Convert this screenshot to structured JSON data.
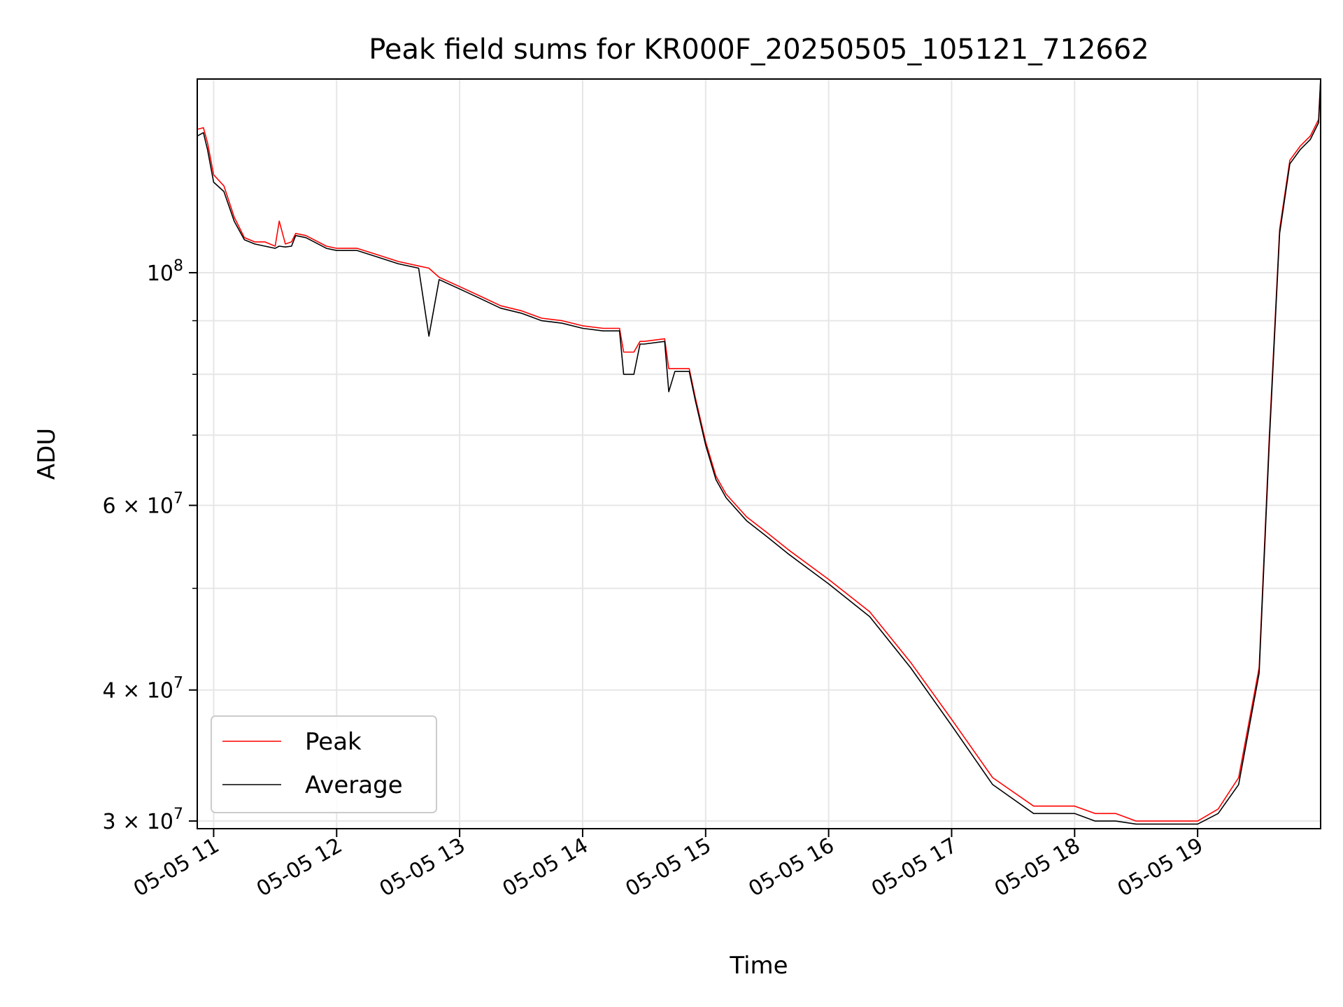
{
  "chart_data": {
    "type": "line",
    "title": "Peak field sums for KR000F_20250505_105121_712662",
    "xlabel": "Time",
    "ylabel": "ADU",
    "yscale": "log",
    "grid": true,
    "legend_position": "lower-left",
    "x_axis_format": "MM-DD HH",
    "xlim": [
      "2025-05-05 10:52",
      "2025-05-05 20:00"
    ],
    "ylim": [
      29500000,
      153000000
    ],
    "x_ticks": [
      "05-05 11",
      "05-05 12",
      "05-05 13",
      "05-05 14",
      "05-05 15",
      "05-05 16",
      "05-05 17",
      "05-05 18",
      "05-05 19"
    ],
    "y_ticks": [
      {
        "value": 100000000,
        "base": "10",
        "exp": "8",
        "mantissa": ""
      },
      {
        "value": 60000000,
        "base": "10",
        "exp": "7",
        "mantissa": "6"
      },
      {
        "value": 40000000,
        "base": "10",
        "exp": "7",
        "mantissa": "4"
      },
      {
        "value": 30000000,
        "base": "10",
        "exp": "7",
        "mantissa": "3"
      }
    ],
    "y_minor_ticks": [
      50000000,
      70000000,
      80000000,
      90000000
    ],
    "series": [
      {
        "name": "Peak",
        "color": "#ff0000",
        "x": [
          "2025-05-05 10:52",
          "2025-05-05 10:55",
          "2025-05-05 10:57",
          "2025-05-05 11:00",
          "2025-05-05 11:05",
          "2025-05-05 11:10",
          "2025-05-05 11:15",
          "2025-05-05 11:20",
          "2025-05-05 11:25",
          "2025-05-05 11:30",
          "2025-05-05 11:32",
          "2025-05-05 11:35",
          "2025-05-05 11:38",
          "2025-05-05 11:40",
          "2025-05-05 11:45",
          "2025-05-05 11:55",
          "2025-05-05 12:00",
          "2025-05-05 12:10",
          "2025-05-05 12:20",
          "2025-05-05 12:30",
          "2025-05-05 12:40",
          "2025-05-05 12:45",
          "2025-05-05 12:50",
          "2025-05-05 13:00",
          "2025-05-05 13:10",
          "2025-05-05 13:20",
          "2025-05-05 13:30",
          "2025-05-05 13:40",
          "2025-05-05 13:50",
          "2025-05-05 14:00",
          "2025-05-05 14:10",
          "2025-05-05 14:18",
          "2025-05-05 14:20",
          "2025-05-05 14:25",
          "2025-05-05 14:28",
          "2025-05-05 14:30",
          "2025-05-05 14:40",
          "2025-05-05 14:42",
          "2025-05-05 14:45",
          "2025-05-05 14:52",
          "2025-05-05 14:55",
          "2025-05-05 15:00",
          "2025-05-05 15:05",
          "2025-05-05 15:10",
          "2025-05-05 15:20",
          "2025-05-05 15:30",
          "2025-05-05 15:40",
          "2025-05-05 16:00",
          "2025-05-05 16:20",
          "2025-05-05 16:40",
          "2025-05-05 17:00",
          "2025-05-05 17:20",
          "2025-05-05 17:40",
          "2025-05-05 18:00",
          "2025-05-05 18:10",
          "2025-05-05 18:20",
          "2025-05-05 18:30",
          "2025-05-05 18:40",
          "2025-05-05 18:50",
          "2025-05-05 19:00",
          "2025-05-05 19:10",
          "2025-05-05 19:20",
          "2025-05-05 19:30",
          "2025-05-05 19:35",
          "2025-05-05 19:40",
          "2025-05-05 19:45",
          "2025-05-05 19:50",
          "2025-05-05 19:55",
          "2025-05-05 19:59",
          "2025-05-05 20:00"
        ],
        "y": [
          137000000,
          137500000,
          133000000,
          124000000,
          121000000,
          113000000,
          108000000,
          107000000,
          107000000,
          106000000,
          112000000,
          106500000,
          107000000,
          109000000,
          108500000,
          106000000,
          105500000,
          105500000,
          104000000,
          102500000,
          101500000,
          101000000,
          99000000,
          97000000,
          95000000,
          93000000,
          92000000,
          90500000,
          90000000,
          89000000,
          88500000,
          88500000,
          84000000,
          84000000,
          86000000,
          86000000,
          86500000,
          81000000,
          81000000,
          81000000,
          76000000,
          69000000,
          64000000,
          61500000,
          58500000,
          56500000,
          54500000,
          51000000,
          47500000,
          42500000,
          37500000,
          33000000,
          31000000,
          31000000,
          30500000,
          30500000,
          30000000,
          30000000,
          30000000,
          30000000,
          30800000,
          33000000,
          42000000,
          70000000,
          110000000,
          128000000,
          132000000,
          135000000,
          140000000,
          153000000
        ]
      },
      {
        "name": "Average",
        "color": "#000000",
        "x": [
          "2025-05-05 10:52",
          "2025-05-05 10:55",
          "2025-05-05 10:57",
          "2025-05-05 11:00",
          "2025-05-05 11:05",
          "2025-05-05 11:10",
          "2025-05-05 11:15",
          "2025-05-05 11:20",
          "2025-05-05 11:25",
          "2025-05-05 11:30",
          "2025-05-05 11:32",
          "2025-05-05 11:35",
          "2025-05-05 11:38",
          "2025-05-05 11:40",
          "2025-05-05 11:45",
          "2025-05-05 11:55",
          "2025-05-05 12:00",
          "2025-05-05 12:10",
          "2025-05-05 12:20",
          "2025-05-05 12:30",
          "2025-05-05 12:40",
          "2025-05-05 12:45",
          "2025-05-05 12:50",
          "2025-05-05 13:00",
          "2025-05-05 13:10",
          "2025-05-05 13:20",
          "2025-05-05 13:30",
          "2025-05-05 13:40",
          "2025-05-05 13:50",
          "2025-05-05 14:00",
          "2025-05-05 14:10",
          "2025-05-05 14:18",
          "2025-05-05 14:20",
          "2025-05-05 14:25",
          "2025-05-05 14:28",
          "2025-05-05 14:30",
          "2025-05-05 14:40",
          "2025-05-05 14:42",
          "2025-05-05 14:45",
          "2025-05-05 14:52",
          "2025-05-05 14:55",
          "2025-05-05 15:00",
          "2025-05-05 15:05",
          "2025-05-05 15:10",
          "2025-05-05 15:20",
          "2025-05-05 15:30",
          "2025-05-05 15:40",
          "2025-05-05 16:00",
          "2025-05-05 16:20",
          "2025-05-05 16:40",
          "2025-05-05 17:00",
          "2025-05-05 17:20",
          "2025-05-05 17:40",
          "2025-05-05 18:00",
          "2025-05-05 18:10",
          "2025-05-05 18:20",
          "2025-05-05 18:30",
          "2025-05-05 18:40",
          "2025-05-05 18:50",
          "2025-05-05 19:00",
          "2025-05-05 19:10",
          "2025-05-05 19:20",
          "2025-05-05 19:30",
          "2025-05-05 19:35",
          "2025-05-05 19:40",
          "2025-05-05 19:45",
          "2025-05-05 19:50",
          "2025-05-05 19:55",
          "2025-05-05 19:59",
          "2025-05-05 20:00"
        ],
        "y": [
          135000000,
          136000000,
          131000000,
          122000000,
          119500000,
          112000000,
          107500000,
          106500000,
          106000000,
          105500000,
          106000000,
          105800000,
          106000000,
          108500000,
          108000000,
          105500000,
          105000000,
          105000000,
          103500000,
          102000000,
          101000000,
          87000000,
          98500000,
          96500000,
          94500000,
          92500000,
          91500000,
          90000000,
          89500000,
          88500000,
          88000000,
          88000000,
          80000000,
          80000000,
          85500000,
          85500000,
          86000000,
          77000000,
          80500000,
          80500000,
          75500000,
          68500000,
          63500000,
          61000000,
          58000000,
          56000000,
          54000000,
          50500000,
          47000000,
          42000000,
          37000000,
          32500000,
          30500000,
          30500000,
          30000000,
          30000000,
          29800000,
          29800000,
          29800000,
          29800000,
          30500000,
          32500000,
          41500000,
          69000000,
          109000000,
          127000000,
          131000000,
          134000000,
          139000000,
          153000000
        ]
      }
    ]
  }
}
